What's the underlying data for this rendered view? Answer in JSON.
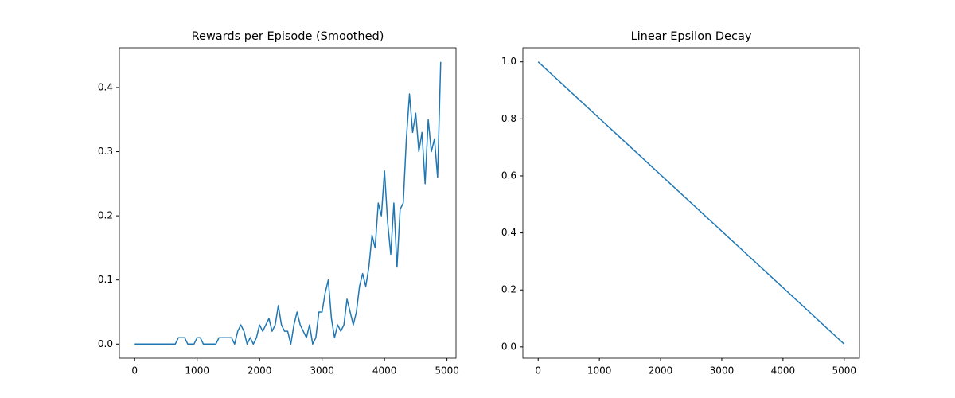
{
  "chart_data": [
    {
      "type": "line",
      "title": "Rewards per Episode (Smoothed)",
      "x": [
        0,
        50,
        100,
        150,
        200,
        250,
        300,
        350,
        400,
        450,
        500,
        550,
        600,
        650,
        700,
        750,
        800,
        850,
        900,
        950,
        1000,
        1050,
        1100,
        1150,
        1200,
        1250,
        1300,
        1350,
        1400,
        1450,
        1500,
        1550,
        1600,
        1650,
        1700,
        1750,
        1800,
        1850,
        1900,
        1950,
        2000,
        2050,
        2100,
        2150,
        2200,
        2250,
        2300,
        2350,
        2400,
        2450,
        2500,
        2550,
        2600,
        2650,
        2700,
        2750,
        2800,
        2850,
        2900,
        2950,
        3000,
        3050,
        3100,
        3150,
        3200,
        3250,
        3300,
        3350,
        3400,
        3450,
        3500,
        3550,
        3600,
        3650,
        3700,
        3750,
        3800,
        3850,
        3900,
        3950,
        4000,
        4050,
        4100,
        4150,
        4200,
        4250,
        4300,
        4350,
        4400,
        4450,
        4500,
        4550,
        4600,
        4650,
        4700,
        4750,
        4800,
        4850,
        4900
      ],
      "series": [
        {
          "color": "#1f77b4",
          "values": [
            0,
            0,
            0,
            0,
            0,
            0,
            0,
            0,
            0,
            0,
            0,
            0,
            0,
            0,
            0.01,
            0.01,
            0.01,
            0,
            0,
            0,
            0.01,
            0.01,
            0,
            0,
            0,
            0,
            0,
            0.01,
            0.01,
            0.01,
            0.01,
            0.01,
            0,
            0.02,
            0.03,
            0.02,
            0,
            0.01,
            0,
            0.01,
            0.03,
            0.02,
            0.03,
            0.04,
            0.02,
            0.03,
            0.06,
            0.03,
            0.02,
            0.02,
            0,
            0.03,
            0.05,
            0.03,
            0.02,
            0.01,
            0.03,
            0,
            0.01,
            0.05,
            0.05,
            0.08,
            0.1,
            0.04,
            0.01,
            0.03,
            0.02,
            0.03,
            0.07,
            0.05,
            0.03,
            0.05,
            0.09,
            0.11,
            0.09,
            0.12,
            0.17,
            0.15,
            0.22,
            0.2,
            0.27,
            0.19,
            0.14,
            0.22,
            0.12,
            0.21,
            0.22,
            0.32,
            0.39,
            0.33,
            0.36,
            0.3,
            0.33,
            0.25,
            0.35,
            0.3,
            0.32,
            0.26,
            0.44
          ]
        }
      ],
      "xlim": [
        -245,
        5145
      ],
      "xticks": [
        0,
        1000,
        2000,
        3000,
        4000,
        5000
      ],
      "ylim": [
        -0.022,
        0.462
      ],
      "yticks": [
        {
          "value": 0,
          "label": "0.0"
        },
        0.1,
        0.2,
        0.3,
        0.4
      ]
    },
    {
      "type": "line",
      "title": "Linear Epsilon Decay",
      "x": [
        0,
        5000
      ],
      "series": [
        {
          "color": "#1f77b4",
          "values": [
            1,
            0.01
          ]
        }
      ],
      "xlim": [
        -250,
        5250
      ],
      "xticks": [
        0,
        1000,
        2000,
        3000,
        4000,
        5000
      ],
      "ylim": [
        -0.0395,
        1.0495
      ],
      "yticks": [
        {
          "value": 0,
          "label": "0.0"
        },
        0.2,
        0.4,
        0.6,
        0.8,
        {
          "value": 1,
          "label": "1.0"
        }
      ]
    }
  ]
}
